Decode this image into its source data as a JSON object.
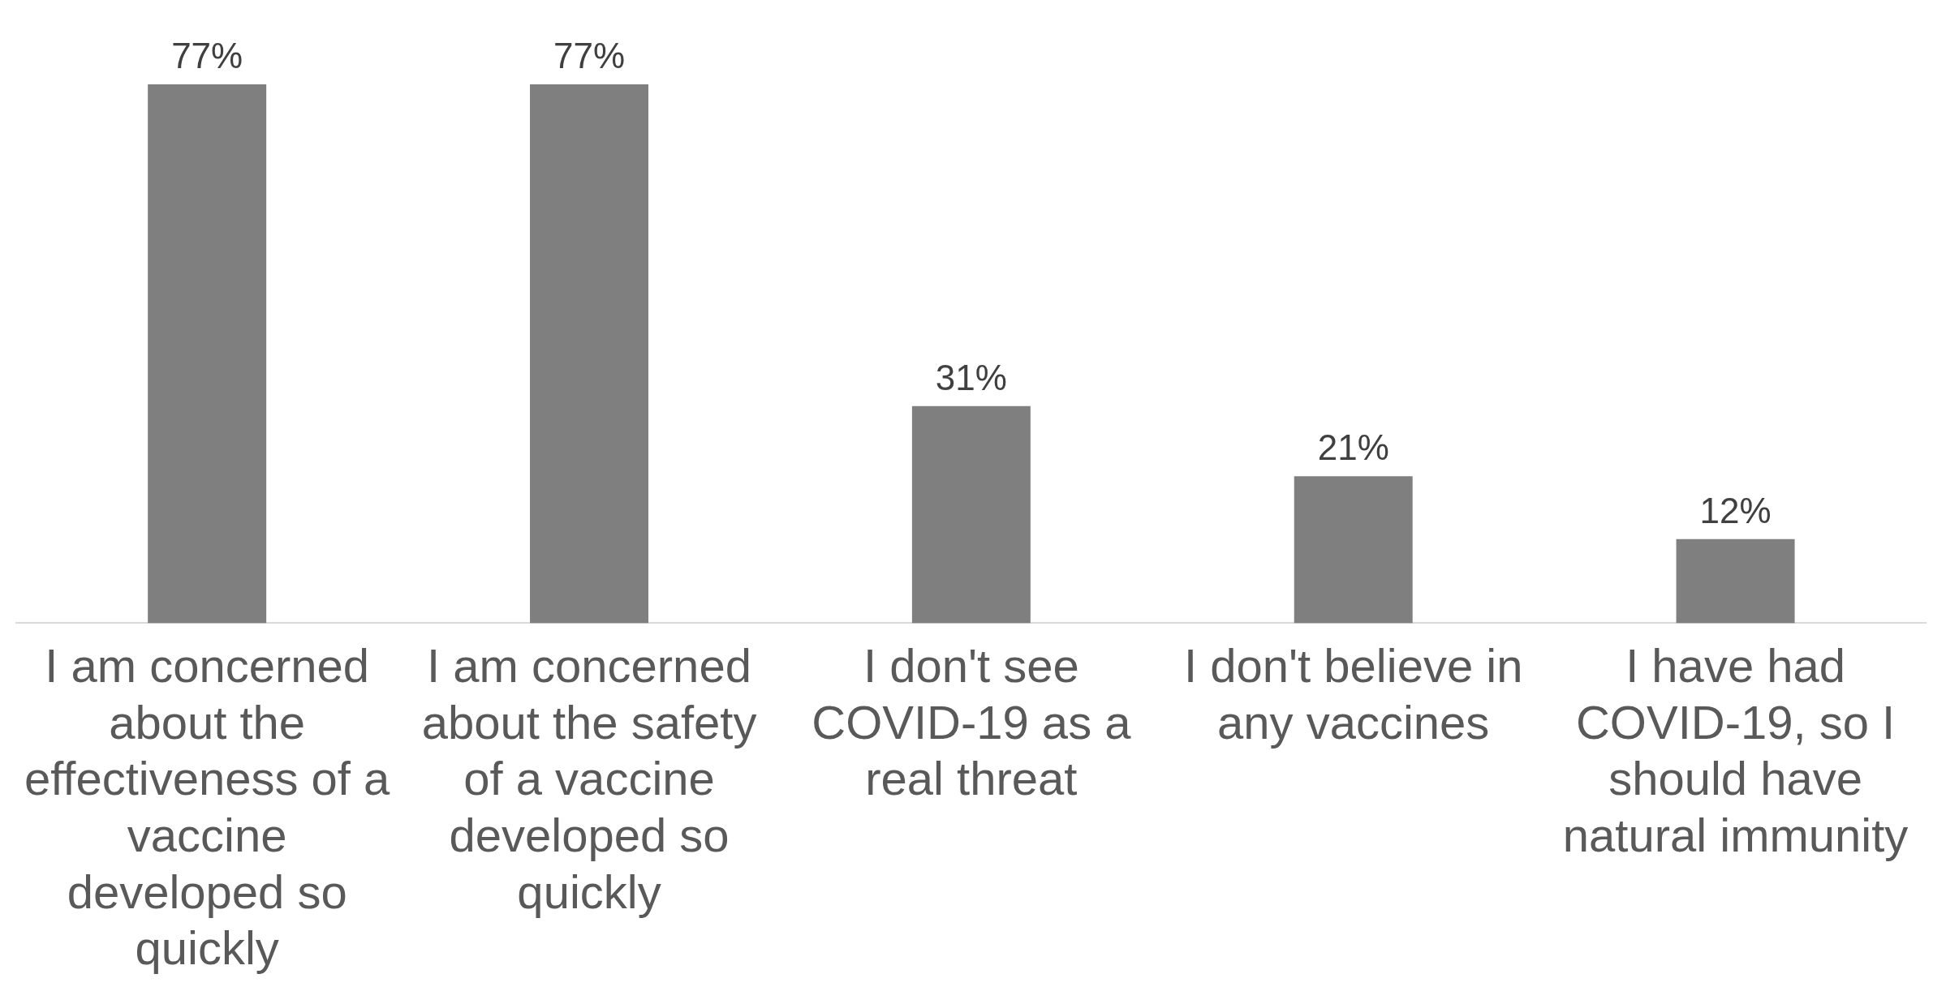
{
  "chart_data": {
    "type": "bar",
    "categories": [
      "I am concerned about the effectiveness of a vaccine developed so quickly",
      "I am concerned about the safety of a vaccine developed so quickly",
      "I don't see COVID-19 as a real threat",
      "I don't believe in any vaccines",
      "I have had COVID-19, so I should have natural immunity"
    ],
    "values": [
      77,
      77,
      31,
      21,
      12
    ],
    "value_labels": [
      "77%",
      "77%",
      "31%",
      "21%",
      "12%"
    ],
    "color": "#7f7f7f",
    "grid": false,
    "legend": false
  }
}
